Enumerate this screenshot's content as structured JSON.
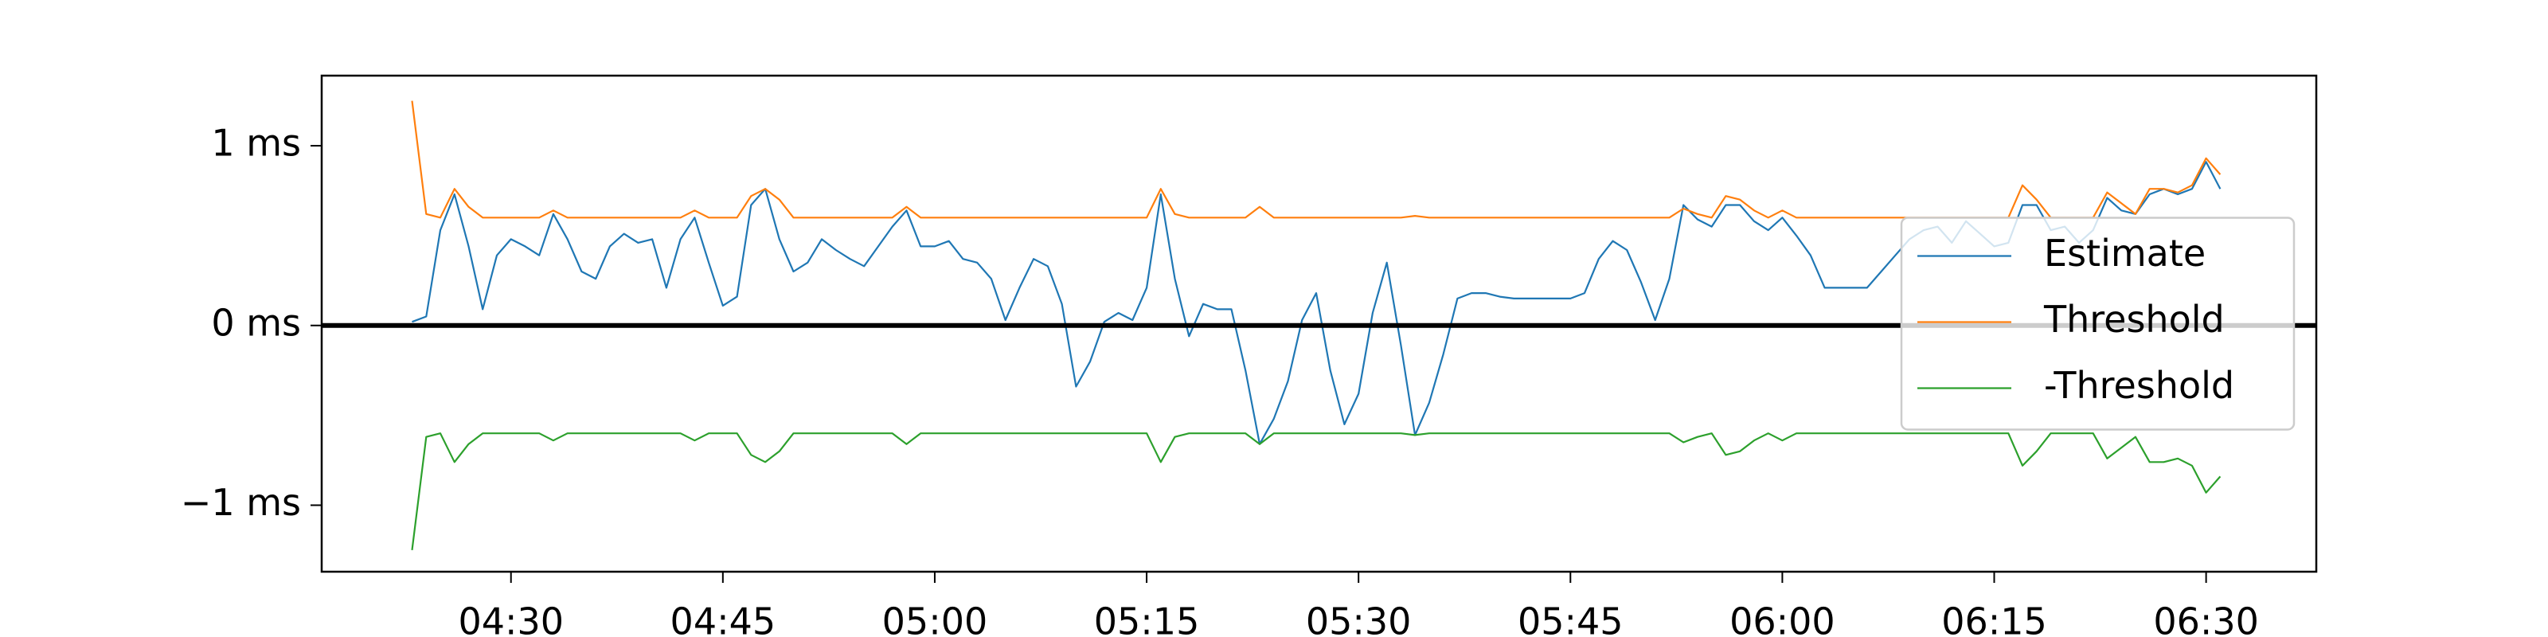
{
  "chart_data": {
    "type": "line",
    "x": [
      263,
      264,
      265,
      266,
      267,
      268,
      269,
      270,
      271,
      272,
      273,
      274,
      275,
      276,
      277,
      278,
      279,
      280,
      281,
      282,
      283,
      284,
      285,
      286,
      287,
      288,
      289,
      290,
      291,
      292,
      293,
      294,
      295,
      296,
      297,
      298,
      299,
      300,
      301,
      302,
      303,
      304,
      305,
      306,
      307,
      308,
      309,
      310,
      311,
      312,
      313,
      314,
      315,
      316,
      317,
      318,
      319,
      320,
      321,
      322,
      323,
      324,
      325,
      326,
      327,
      328,
      329,
      330,
      331,
      332,
      333,
      334,
      335,
      336,
      337,
      338,
      339,
      340,
      341,
      342,
      343,
      344,
      345,
      346,
      347,
      348,
      349,
      350,
      351,
      352,
      353,
      354,
      355,
      356,
      357,
      358,
      359,
      360,
      361,
      362,
      363,
      364,
      365,
      366,
      367,
      368,
      369,
      370,
      371,
      372,
      373,
      374,
      375,
      376,
      377,
      378,
      379,
      380,
      381,
      382,
      383,
      384,
      385,
      386,
      387,
      388,
      389,
      390,
      391
    ],
    "series": [
      {
        "name": "Estimate",
        "color": "#1f77b4",
        "values": [
          0.02,
          0.05,
          0.53,
          0.73,
          0.44,
          0.09,
          0.39,
          0.48,
          0.44,
          0.39,
          0.62,
          0.48,
          0.3,
          0.26,
          0.44,
          0.51,
          0.46,
          0.48,
          0.21,
          0.48,
          0.6,
          0.35,
          0.11,
          0.16,
          0.67,
          0.76,
          0.48,
          0.3,
          0.35,
          0.48,
          0.42,
          0.37,
          0.33,
          0.44,
          0.55,
          0.64,
          0.44,
          0.44,
          0.47,
          0.37,
          0.35,
          0.26,
          0.03,
          0.21,
          0.37,
          0.33,
          0.12,
          -0.34,
          -0.2,
          0.02,
          0.07,
          0.03,
          0.21,
          0.73,
          0.26,
          -0.06,
          0.12,
          0.09,
          0.09,
          -0.25,
          -0.66,
          -0.52,
          -0.31,
          0.03,
          0.18,
          -0.25,
          -0.55,
          -0.38,
          0.07,
          0.35,
          -0.11,
          -0.61,
          -0.43,
          -0.16,
          0.15,
          0.18,
          0.18,
          0.16,
          0.15,
          0.15,
          0.15,
          0.15,
          0.15,
          0.18,
          0.37,
          0.47,
          0.42,
          0.24,
          0.03,
          0.26,
          0.67,
          0.59,
          0.55,
          0.67,
          0.67,
          0.58,
          0.53,
          0.6,
          0.5,
          0.39,
          0.21,
          0.21,
          0.21,
          0.21,
          0.3,
          0.39,
          0.48,
          0.53,
          0.55,
          0.46,
          0.58,
          0.51,
          0.44,
          0.46,
          0.67,
          0.67,
          0.53,
          0.55,
          0.46,
          0.53,
          0.71,
          0.64,
          0.62,
          0.73,
          0.76,
          0.73,
          0.76,
          0.91,
          0.76
        ]
      },
      {
        "name": "Threshold",
        "color": "#ff7f0e",
        "values": [
          1.25,
          0.62,
          0.6,
          0.76,
          0.66,
          0.6,
          0.6,
          0.6,
          0.6,
          0.6,
          0.64,
          0.6,
          0.6,
          0.6,
          0.6,
          0.6,
          0.6,
          0.6,
          0.6,
          0.6,
          0.64,
          0.6,
          0.6,
          0.6,
          0.72,
          0.76,
          0.7,
          0.6,
          0.6,
          0.6,
          0.6,
          0.6,
          0.6,
          0.6,
          0.6,
          0.66,
          0.6,
          0.6,
          0.6,
          0.6,
          0.6,
          0.6,
          0.6,
          0.6,
          0.6,
          0.6,
          0.6,
          0.6,
          0.6,
          0.6,
          0.6,
          0.6,
          0.6,
          0.76,
          0.62,
          0.6,
          0.6,
          0.6,
          0.6,
          0.6,
          0.66,
          0.6,
          0.6,
          0.6,
          0.6,
          0.6,
          0.6,
          0.6,
          0.6,
          0.6,
          0.6,
          0.61,
          0.6,
          0.6,
          0.6,
          0.6,
          0.6,
          0.6,
          0.6,
          0.6,
          0.6,
          0.6,
          0.6,
          0.6,
          0.6,
          0.6,
          0.6,
          0.6,
          0.6,
          0.6,
          0.65,
          0.62,
          0.6,
          0.72,
          0.7,
          0.64,
          0.6,
          0.64,
          0.6,
          0.6,
          0.6,
          0.6,
          0.6,
          0.6,
          0.6,
          0.6,
          0.6,
          0.6,
          0.6,
          0.6,
          0.6,
          0.6,
          0.6,
          0.6,
          0.78,
          0.7,
          0.6,
          0.6,
          0.6,
          0.6,
          0.74,
          0.68,
          0.62,
          0.76,
          0.76,
          0.74,
          0.78,
          0.93,
          0.84
        ]
      },
      {
        "name": "-Threshold",
        "color": "#2ca02c",
        "values": [
          -1.25,
          -0.62,
          -0.6,
          -0.76,
          -0.66,
          -0.6,
          -0.6,
          -0.6,
          -0.6,
          -0.6,
          -0.64,
          -0.6,
          -0.6,
          -0.6,
          -0.6,
          -0.6,
          -0.6,
          -0.6,
          -0.6,
          -0.6,
          -0.64,
          -0.6,
          -0.6,
          -0.6,
          -0.72,
          -0.76,
          -0.7,
          -0.6,
          -0.6,
          -0.6,
          -0.6,
          -0.6,
          -0.6,
          -0.6,
          -0.6,
          -0.66,
          -0.6,
          -0.6,
          -0.6,
          -0.6,
          -0.6,
          -0.6,
          -0.6,
          -0.6,
          -0.6,
          -0.6,
          -0.6,
          -0.6,
          -0.6,
          -0.6,
          -0.6,
          -0.6,
          -0.6,
          -0.76,
          -0.62,
          -0.6,
          -0.6,
          -0.6,
          -0.6,
          -0.6,
          -0.66,
          -0.6,
          -0.6,
          -0.6,
          -0.6,
          -0.6,
          -0.6,
          -0.6,
          -0.6,
          -0.6,
          -0.6,
          -0.61,
          -0.6,
          -0.6,
          -0.6,
          -0.6,
          -0.6,
          -0.6,
          -0.6,
          -0.6,
          -0.6,
          -0.6,
          -0.6,
          -0.6,
          -0.6,
          -0.6,
          -0.6,
          -0.6,
          -0.6,
          -0.6,
          -0.65,
          -0.62,
          -0.6,
          -0.72,
          -0.7,
          -0.64,
          -0.6,
          -0.64,
          -0.6,
          -0.6,
          -0.6,
          -0.6,
          -0.6,
          -0.6,
          -0.6,
          -0.6,
          -0.6,
          -0.6,
          -0.6,
          -0.6,
          -0.6,
          -0.6,
          -0.6,
          -0.6,
          -0.78,
          -0.7,
          -0.6,
          -0.6,
          -0.6,
          -0.6,
          -0.74,
          -0.68,
          -0.62,
          -0.76,
          -0.76,
          -0.74,
          -0.78,
          -0.93,
          -0.84
        ]
      }
    ],
    "xlim": [
      256.6,
      397.8
    ],
    "xticks": [
      {
        "value": 270,
        "label": "04:30"
      },
      {
        "value": 285,
        "label": "04:45"
      },
      {
        "value": 300,
        "label": "05:00"
      },
      {
        "value": 315,
        "label": "05:15"
      },
      {
        "value": 330,
        "label": "05:30"
      },
      {
        "value": 345,
        "label": "05:45"
      },
      {
        "value": 360,
        "label": "06:00"
      },
      {
        "value": 375,
        "label": "06:15"
      },
      {
        "value": 390,
        "label": "06:30"
      }
    ],
    "ylim": [
      -1.37,
      1.39
    ],
    "yticks": [
      {
        "value": 1,
        "label": "1 ms"
      },
      {
        "value": 0,
        "label": "0 ms"
      },
      {
        "value": -1,
        "label": "−1 ms"
      }
    ],
    "hline": 0,
    "legend": "center right",
    "grid": false
  }
}
